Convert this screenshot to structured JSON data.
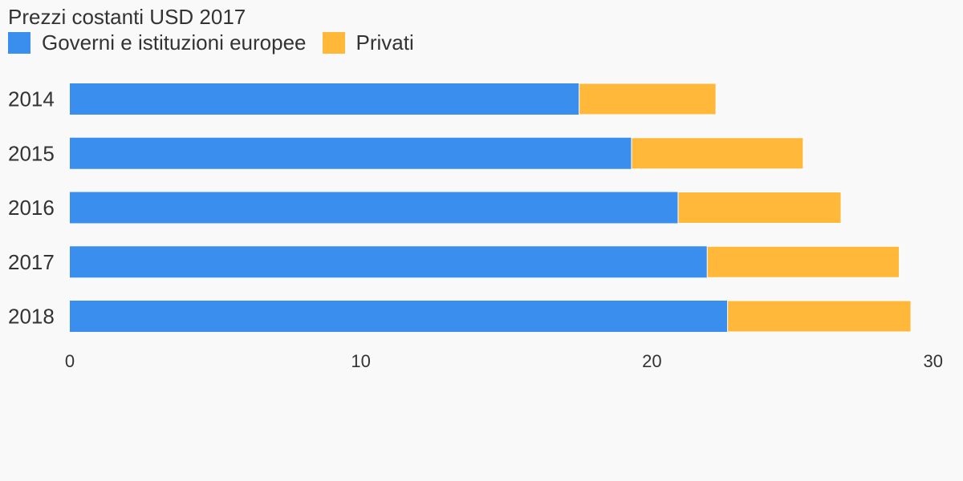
{
  "chart_data": {
    "type": "bar",
    "orientation": "horizontal",
    "stacked": true,
    "title": "Prezzi costanti USD 2017",
    "categories": [
      "2014",
      "2015",
      "2016",
      "2017",
      "2018"
    ],
    "series": [
      {
        "name": "Governi e istituzioni europee",
        "color": "#3a8eed",
        "values": [
          17.5,
          19.3,
          20.9,
          21.9,
          22.6
        ]
      },
      {
        "name": "Privati",
        "color": "#ffb83a",
        "values": [
          4.7,
          5.9,
          5.6,
          6.6,
          6.3
        ]
      }
    ],
    "xlim": [
      0,
      30
    ],
    "xticks": [
      "0",
      "10",
      "20",
      "30"
    ],
    "grid": false,
    "legend_position": "top-left"
  }
}
